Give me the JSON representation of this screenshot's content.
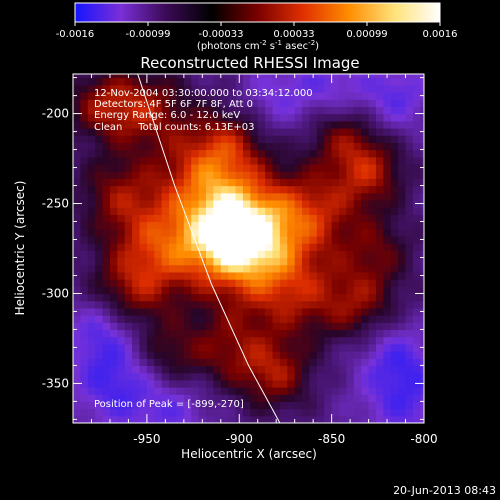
{
  "colorbar": {
    "ticks": [
      "-0.0016",
      "-0.00099",
      "-0.00033",
      "0.00033",
      "0.00099",
      "0.0016"
    ],
    "label_main": "(photons cm",
    "label_sup1": "-2",
    "label_mid1": " s",
    "label_sup2": "-1",
    "label_mid2": " asec",
    "label_sup3": "-2",
    "label_end": ")",
    "colors": [
      "#1515ff",
      "#7a2fd8",
      "#3a0a55",
      "#000000",
      "#7a0000",
      "#e03000",
      "#ff8c00",
      "#ffe27a",
      "#ffffff"
    ]
  },
  "chart_data": {
    "type": "heatmap",
    "title": "Reconstructed RHESSI Image",
    "xlabel": "Heliocentric X (arcsec)",
    "ylabel": "Heliocentric Y (arcsec)",
    "xlim": [
      -990,
      -800
    ],
    "ylim": [
      -372,
      -178
    ],
    "x_ticks": [
      -950,
      -900,
      -850,
      -800
    ],
    "x_tick_labels": [
      "-950",
      "-900",
      "-850",
      "-800"
    ],
    "y_ticks": [
      -200,
      -250,
      -300,
      -350
    ],
    "y_tick_labels": [
      "-200",
      "-250",
      "-300",
      "-350"
    ],
    "annotations": [
      "12-Nov-2004 03:30:00.000 to 03:34:12.000",
      "Detectors: 4F 5F 6F 7F 8F, Att 0",
      "Energy Range: 6.0 - 12.0 keV",
      "Clean     Total counts: 6.13E+03"
    ],
    "peak_label": "Position of Peak = [-899,-270]",
    "peak": {
      "x": -899,
      "y": -270
    },
    "limb_curve": [
      {
        "x": -955,
        "y": -178
      },
      {
        "x": -935,
        "y": -240
      },
      {
        "x": -915,
        "y": -295
      },
      {
        "x": -895,
        "y": -340
      },
      {
        "x": -878,
        "y": -372
      }
    ],
    "sources": [
      {
        "x": -899,
        "y": -270,
        "amp": 1.0,
        "size": 20
      },
      {
        "x": -908,
        "y": -260,
        "amp": 0.55,
        "size": 24
      },
      {
        "x": -860,
        "y": -255,
        "amp": 0.55,
        "size": 17
      },
      {
        "x": -830,
        "y": -232,
        "amp": 0.55,
        "size": 14
      },
      {
        "x": -845,
        "y": -210,
        "amp": 0.4,
        "size": 14
      },
      {
        "x": -950,
        "y": -197,
        "amp": 0.5,
        "size": 16
      },
      {
        "x": -975,
        "y": -195,
        "amp": 0.45,
        "size": 14
      },
      {
        "x": -965,
        "y": -245,
        "amp": 0.45,
        "size": 16
      },
      {
        "x": -945,
        "y": -275,
        "amp": 0.5,
        "size": 18
      },
      {
        "x": -960,
        "y": -300,
        "amp": 0.45,
        "size": 16
      },
      {
        "x": -920,
        "y": -230,
        "amp": 0.45,
        "size": 18
      },
      {
        "x": -870,
        "y": -300,
        "amp": 0.5,
        "size": 18
      },
      {
        "x": -835,
        "y": -305,
        "amp": 0.45,
        "size": 15
      },
      {
        "x": -880,
        "y": -345,
        "amp": 0.5,
        "size": 14
      },
      {
        "x": -905,
        "y": -330,
        "amp": 0.42,
        "size": 16
      },
      {
        "x": -940,
        "y": -335,
        "amp": 0.42,
        "size": 14
      },
      {
        "x": -825,
        "y": -275,
        "amp": 0.35,
        "size": 14
      },
      {
        "x": -905,
        "y": -215,
        "amp": 0.35,
        "size": 14
      },
      {
        "x": -965,
        "y": -350,
        "amp": -0.5,
        "size": 18
      },
      {
        "x": -975,
        "y": -320,
        "amp": -0.4,
        "size": 14
      },
      {
        "x": -810,
        "y": -360,
        "amp": -0.4,
        "size": 18
      },
      {
        "x": -815,
        "y": -190,
        "amp": -0.4,
        "size": 14
      },
      {
        "x": -850,
        "y": -185,
        "amp": -0.35,
        "size": 14
      },
      {
        "x": -815,
        "y": -335,
        "amp": -0.35,
        "size": 14
      },
      {
        "x": -880,
        "y": -190,
        "amp": -0.3,
        "size": 14
      },
      {
        "x": -935,
        "y": -365,
        "amp": -0.3,
        "size": 14
      }
    ]
  },
  "timestamp": "20-Jun-2013 08:43"
}
